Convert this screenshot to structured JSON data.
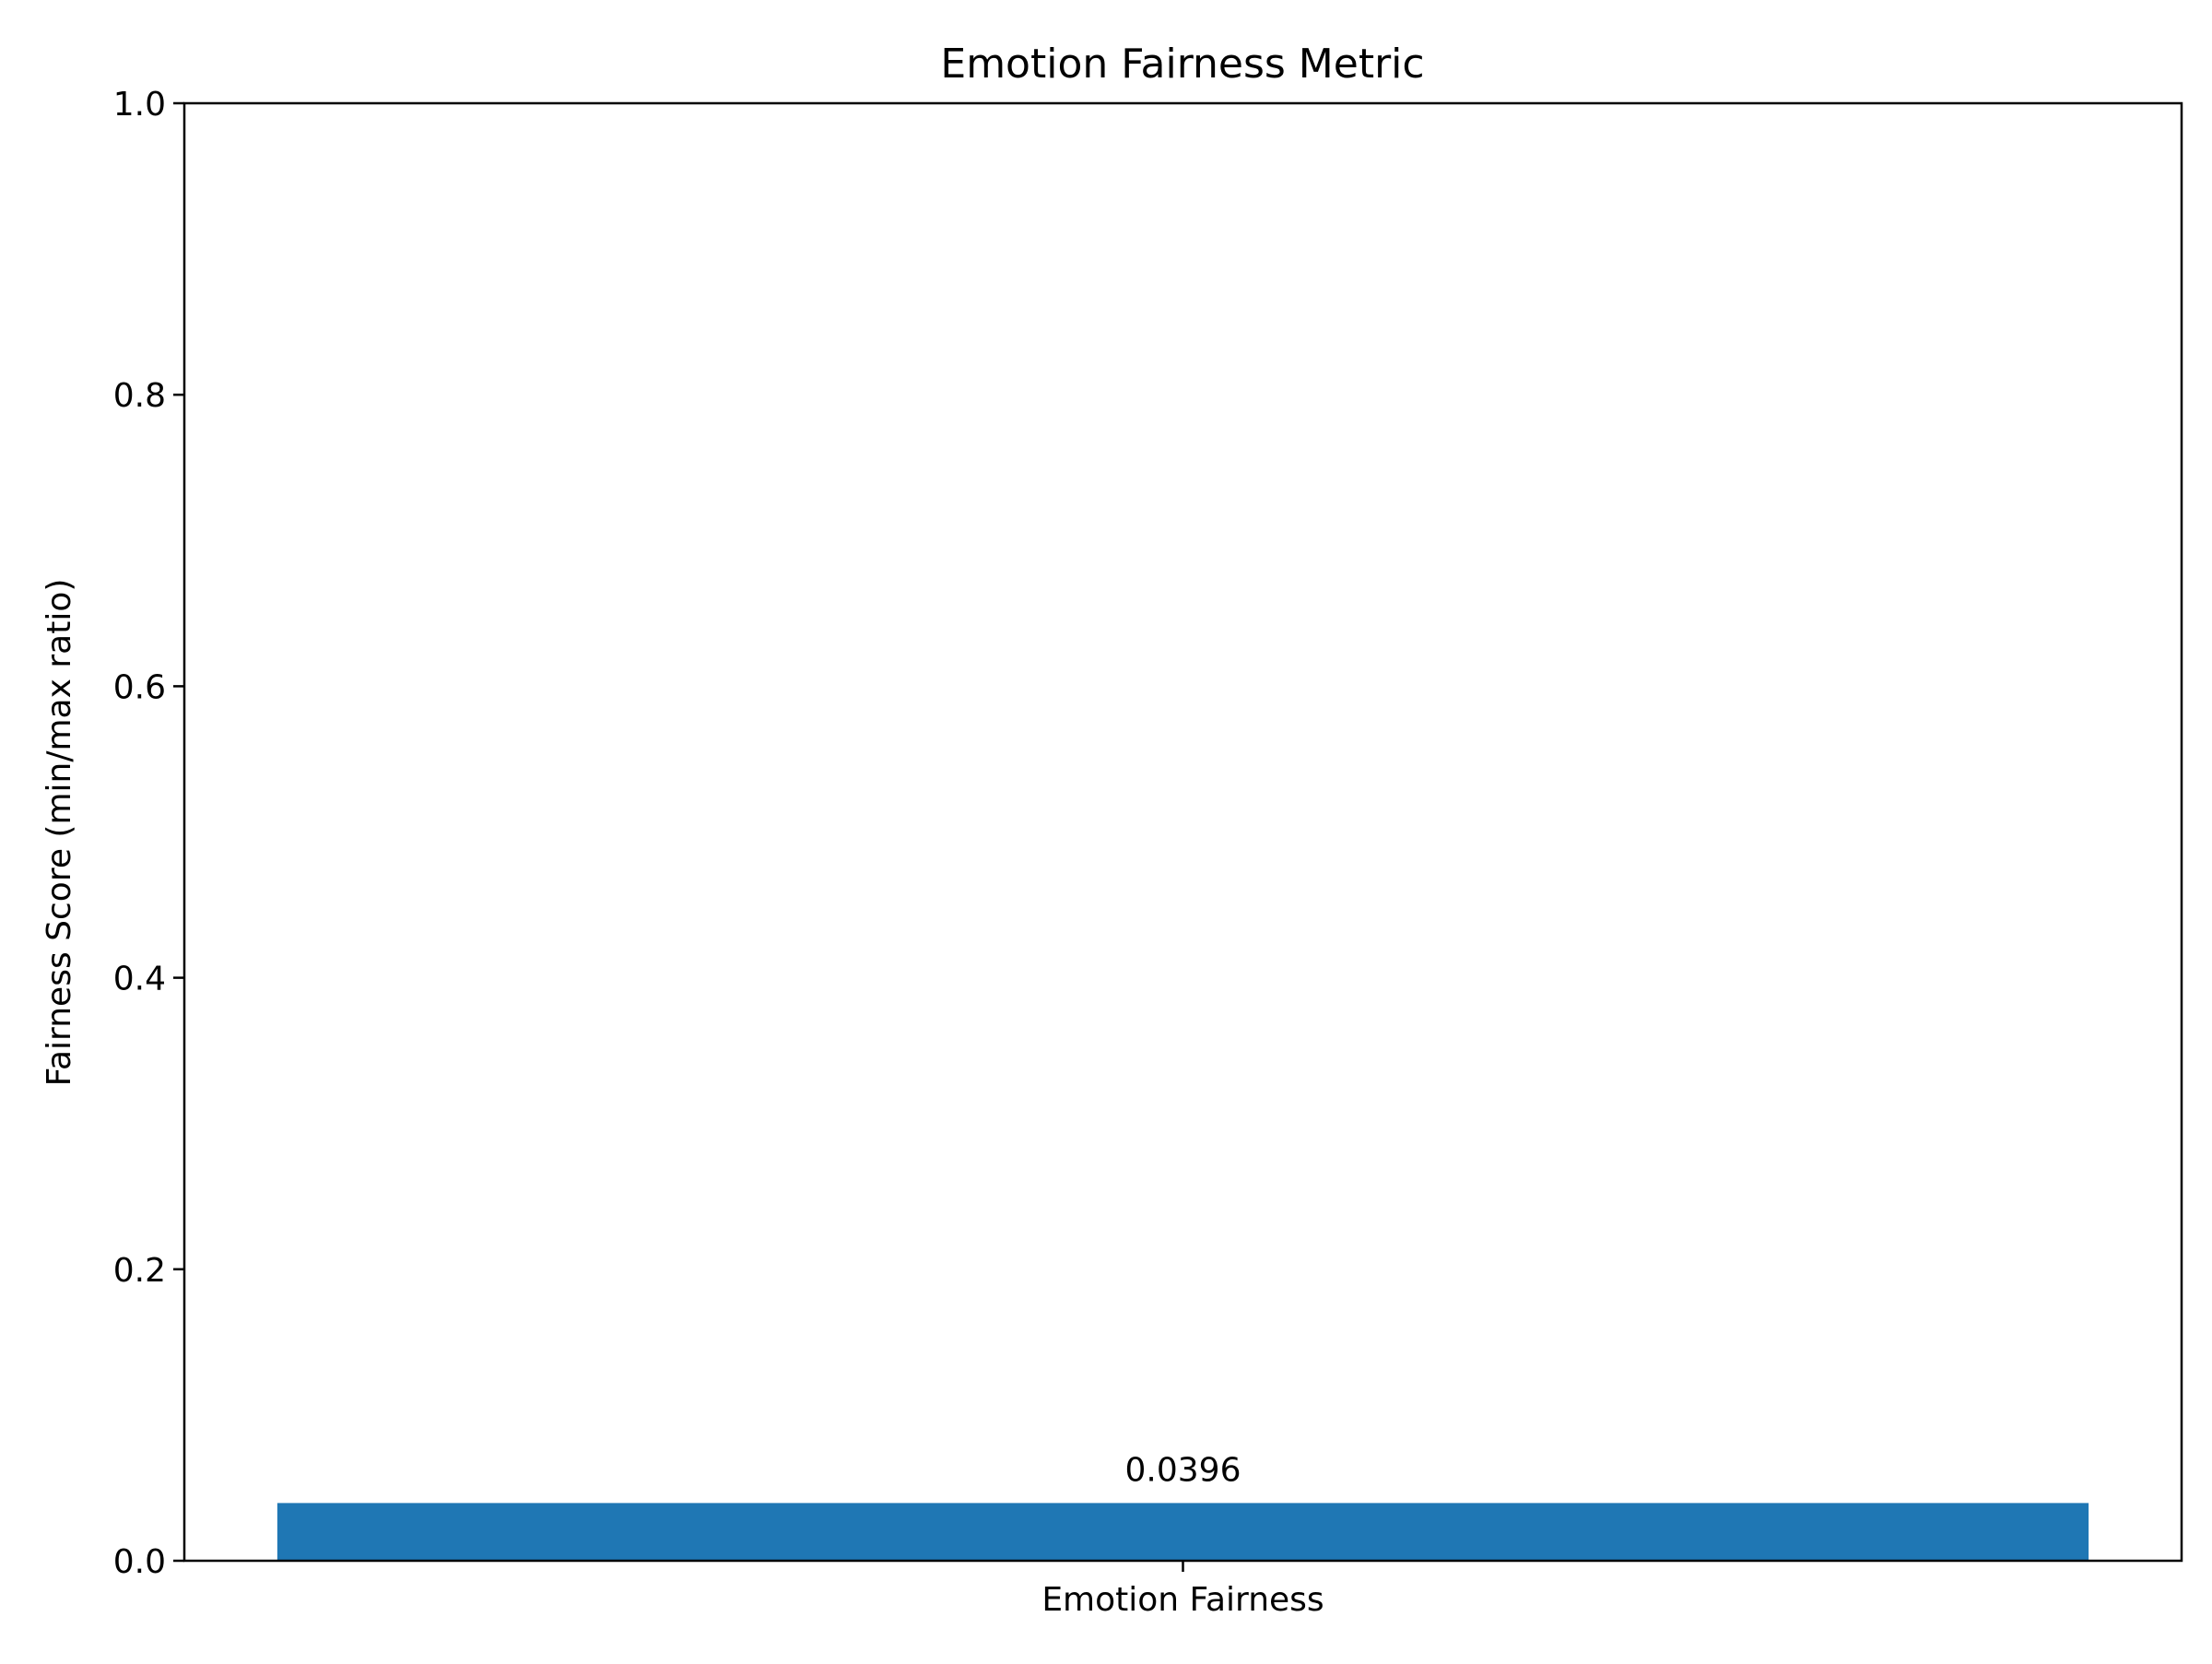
{
  "chart_data": {
    "type": "bar",
    "title": "Emotion Fairness Metric",
    "xlabel": "",
    "ylabel": "Fairness Score (min/max ratio)",
    "categories": [
      "Emotion Fairness"
    ],
    "values": [
      0.0396
    ],
    "data_labels": [
      "0.0396"
    ],
    "ylim": [
      0.0,
      1.0
    ],
    "yticks": [
      0.0,
      0.2,
      0.4,
      0.6,
      0.8,
      1.0
    ],
    "ytick_labels": [
      "0.0",
      "0.2",
      "0.4",
      "0.6",
      "0.8",
      "1.0"
    ],
    "grid": false,
    "legend": "none",
    "bar_color": "#1f77b4"
  }
}
